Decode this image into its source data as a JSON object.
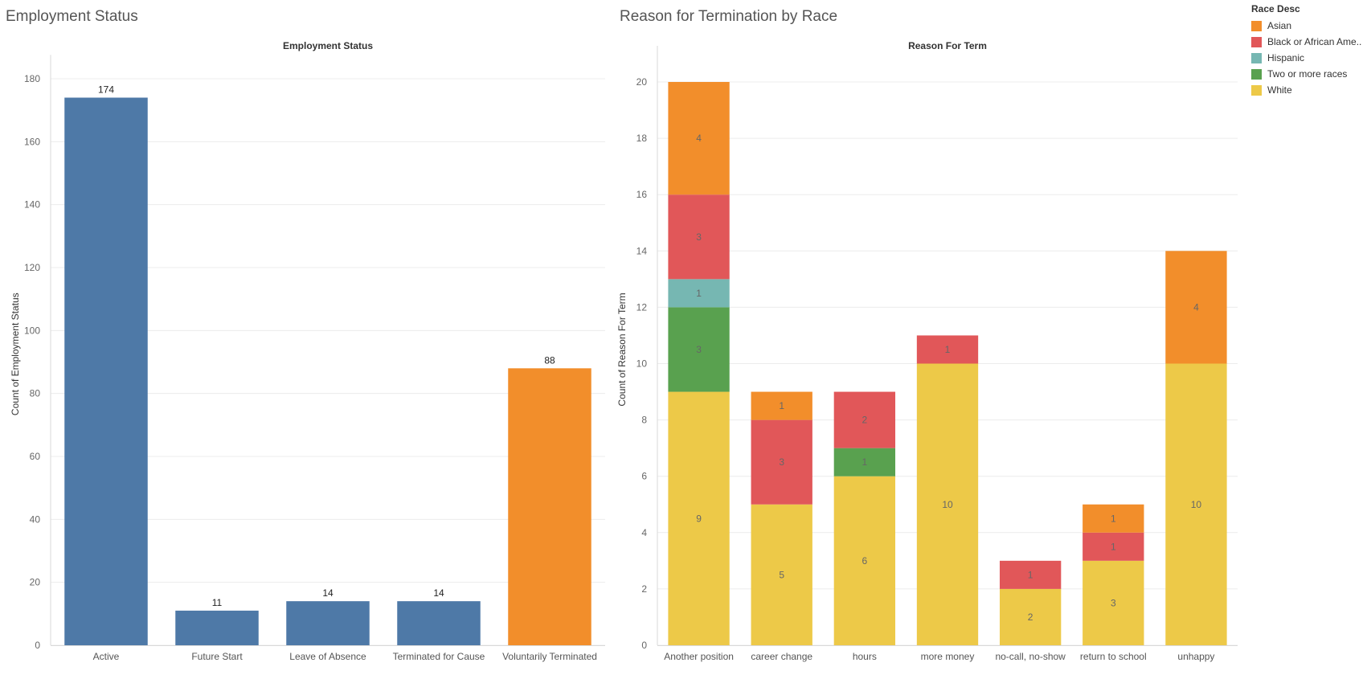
{
  "titles": {
    "left": "Employment Status",
    "right": "Reason for Termination by Race"
  },
  "legend": {
    "title": "Race Desc",
    "items": [
      {
        "label": "Asian",
        "color": "#F28E2B"
      },
      {
        "label": "Black or African Ame..",
        "color": "#E15759"
      },
      {
        "label": "Hispanic",
        "color": "#76B7B2"
      },
      {
        "label": "Two or more races",
        "color": "#59A14F"
      },
      {
        "label": "White",
        "color": "#EDC948"
      }
    ]
  },
  "chart_data": [
    {
      "type": "bar",
      "title": "Employment Status",
      "xlabel": "",
      "ylabel": "Count of Employment Status",
      "ylim": [
        0,
        185
      ],
      "yticks": [
        0,
        20,
        40,
        60,
        80,
        100,
        120,
        140,
        160,
        180
      ],
      "categories": [
        "Active",
        "Future Start",
        "Leave of Absence",
        "Terminated for Cause",
        "Voluntarily Terminated"
      ],
      "values": [
        174,
        11,
        14,
        14,
        88
      ],
      "colors": [
        "#4E79A7",
        "#4E79A7",
        "#4E79A7",
        "#4E79A7",
        "#F28E2B"
      ],
      "grid": true
    },
    {
      "type": "bar",
      "stacked": true,
      "title": "Reason For Term",
      "xlabel": "",
      "ylabel": "Count of Reason For Term",
      "ylim": [
        0,
        21
      ],
      "yticks": [
        0,
        2,
        4,
        6,
        8,
        10,
        12,
        14,
        16,
        18,
        20
      ],
      "categories": [
        "Another position",
        "career change",
        "hours",
        "more money",
        "no-call, no-show",
        "return to school",
        "unhappy"
      ],
      "series": [
        {
          "name": "White",
          "color": "#EDC948",
          "values": [
            9,
            5,
            6,
            10,
            2,
            3,
            10
          ]
        },
        {
          "name": "Two or more races",
          "color": "#59A14F",
          "values": [
            3,
            0,
            1,
            0,
            0,
            0,
            0
          ]
        },
        {
          "name": "Hispanic",
          "color": "#76B7B2",
          "values": [
            1,
            0,
            0,
            0,
            0,
            0,
            0
          ]
        },
        {
          "name": "Black or African Ame..",
          "color": "#E15759",
          "values": [
            3,
            3,
            2,
            1,
            1,
            1,
            0
          ]
        },
        {
          "name": "Asian",
          "color": "#F28E2B",
          "values": [
            4,
            1,
            0,
            0,
            0,
            1,
            4
          ]
        }
      ],
      "grid": true,
      "legend": "top-right"
    }
  ]
}
